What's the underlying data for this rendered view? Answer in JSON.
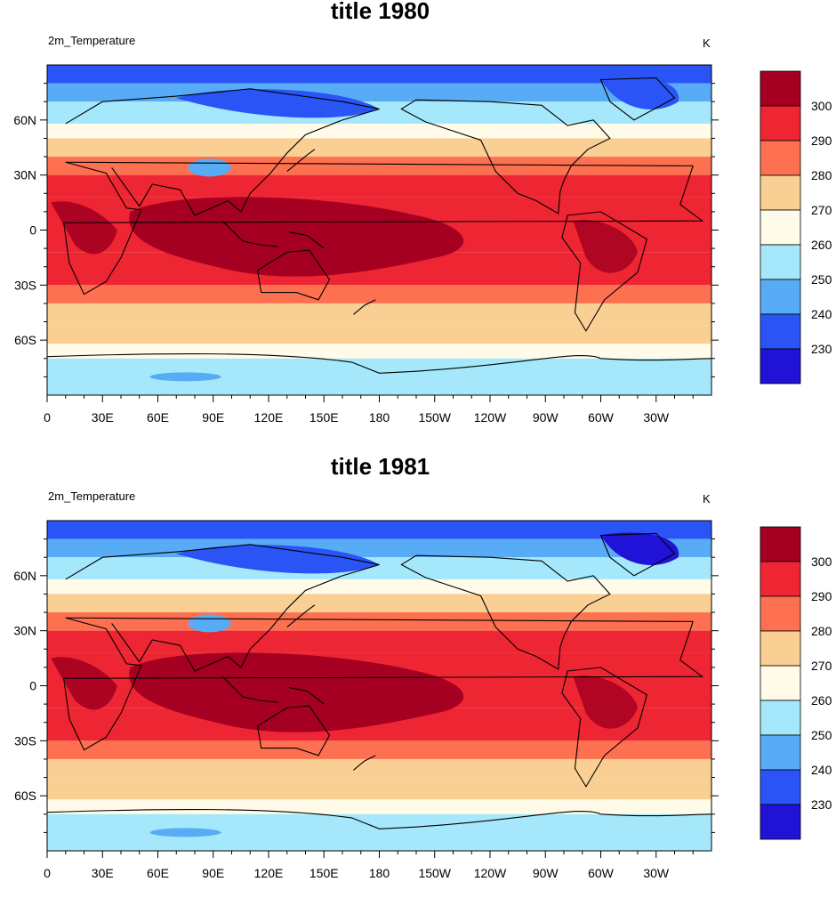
{
  "panels": [
    {
      "title": "title 1980",
      "variable": "2m_Temperature",
      "units": "K"
    },
    {
      "title": "title 1981",
      "variable": "2m_Temperature",
      "units": "K"
    }
  ],
  "x_ticks": [
    "0",
    "30E",
    "60E",
    "90E",
    "120E",
    "150E",
    "180",
    "150W",
    "120W",
    "90W",
    "60W",
    "30W"
  ],
  "y_ticks": [
    "60N",
    "30N",
    "0",
    "30S",
    "60S"
  ],
  "colorbar": {
    "labels": [
      "300",
      "290",
      "280",
      "270",
      "260",
      "250",
      "240",
      "230"
    ],
    "colors": [
      "#a50021",
      "#ee2532",
      "#fd7050",
      "#f9cf93",
      "#fffbe8",
      "#a5e8fb",
      "#58acf5",
      "#2a54f5",
      "#2012d6"
    ]
  },
  "land_color": "#e5313f"
}
